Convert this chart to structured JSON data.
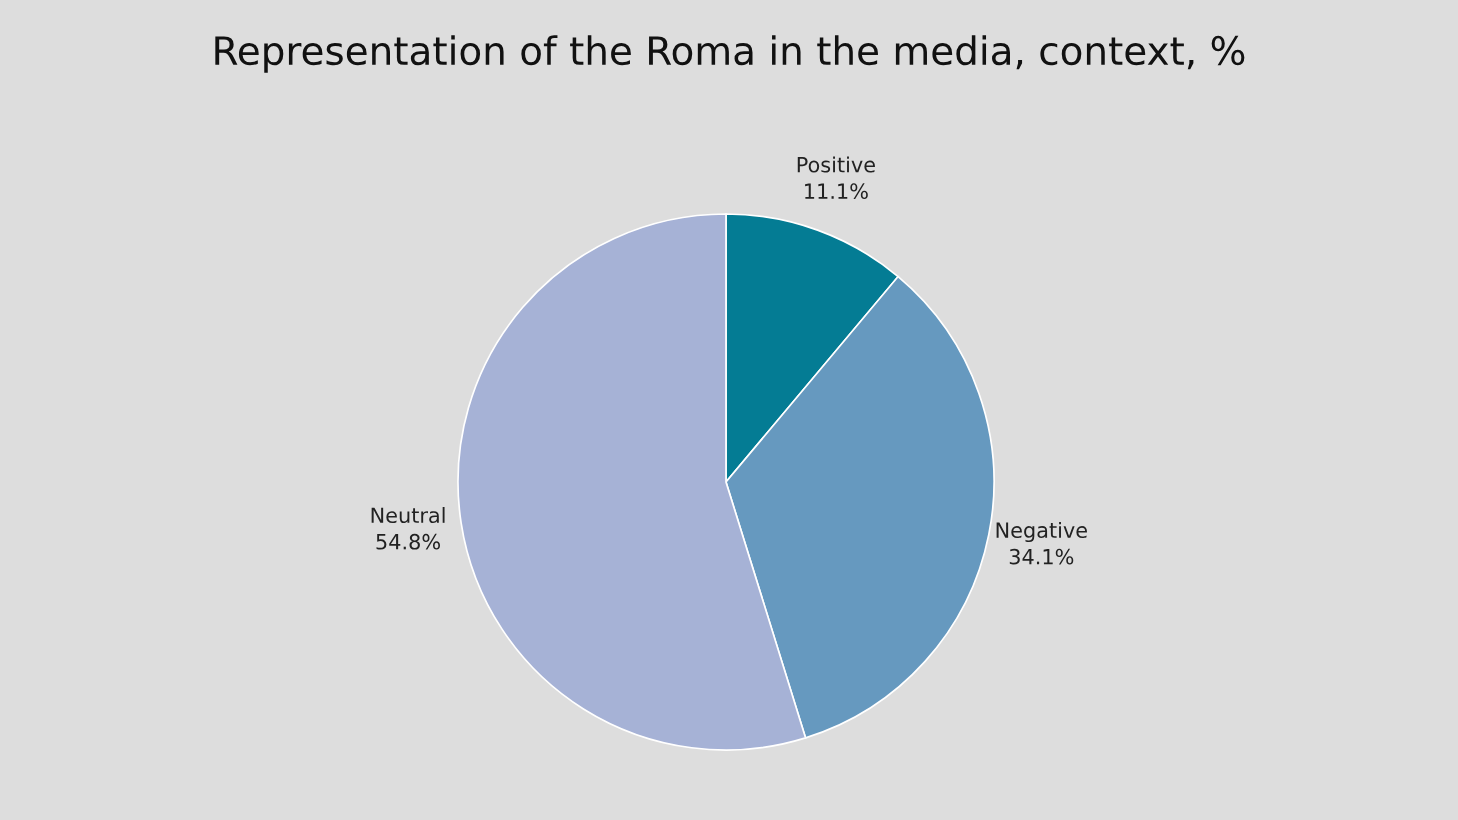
{
  "chart_data": {
    "type": "pie",
    "title": "Representation of the Roma in the media, context, %",
    "categories": [
      "Positive",
      "Negative",
      "Neutral"
    ],
    "values": [
      11.1,
      34.1,
      54.8
    ],
    "value_labels": [
      "11.1%",
      "34.1%",
      "54.8%"
    ],
    "colors": [
      "#047c94",
      "#6699bf",
      "#a6b2d6"
    ]
  }
}
